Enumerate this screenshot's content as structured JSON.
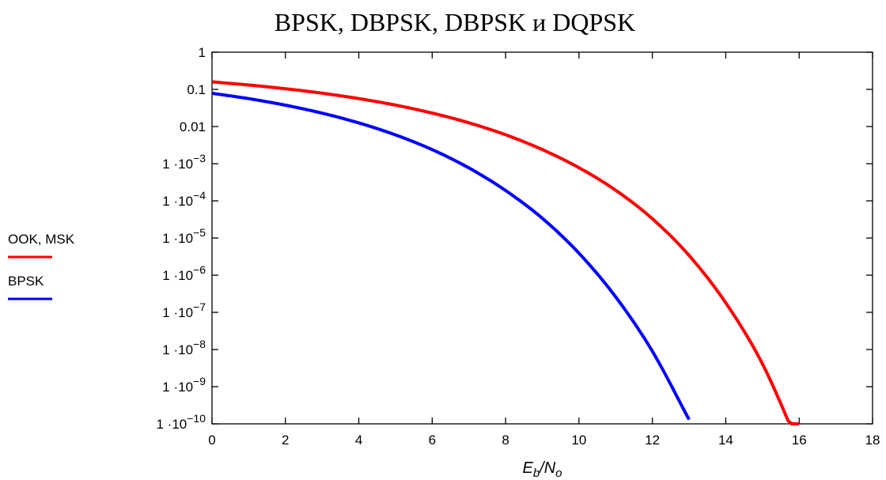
{
  "chart_data": {
    "type": "line",
    "title": "BPSK, DBPSK, DBPSK и DQPSK",
    "xlabel": {
      "main": "E",
      "sub1": "b",
      "mid": "/N",
      "sub2": "o"
    },
    "ylabel": "",
    "xlim": [
      0,
      18
    ],
    "ylim_exp": [
      -10,
      0
    ],
    "log_y": true,
    "grid": false,
    "x_ticks": [
      "0",
      "2",
      "4",
      "6",
      "8",
      "10",
      "12",
      "14",
      "16",
      "18"
    ],
    "y_ticks": [
      {
        "exp": 0,
        "mantissa": "1",
        "power": ""
      },
      {
        "exp": -1,
        "mantissa": "0.1",
        "power": ""
      },
      {
        "exp": -2,
        "mantissa": "0.01",
        "power": ""
      },
      {
        "exp": -3,
        "mantissa": "1 ·10",
        "power": "−3"
      },
      {
        "exp": -4,
        "mantissa": "1 ·10",
        "power": "−4"
      },
      {
        "exp": -5,
        "mantissa": "1 ·10",
        "power": "−5"
      },
      {
        "exp": -6,
        "mantissa": "1 ·10",
        "power": "−6"
      },
      {
        "exp": -7,
        "mantissa": "1 ·10",
        "power": "−7"
      },
      {
        "exp": -8,
        "mantissa": "1 ·10",
        "power": "−8"
      },
      {
        "exp": -9,
        "mantissa": "1 ·10",
        "power": "−9"
      },
      {
        "exp": -10,
        "mantissa": "1 ·10",
        "power": "−10"
      }
    ],
    "legend_position": "left",
    "series": [
      {
        "name": "OOK, MSK",
        "color": "#ff0000",
        "x": [
          0,
          1,
          2,
          3,
          4,
          5,
          6,
          7,
          8,
          9,
          10,
          11,
          12,
          13,
          14,
          15,
          16
        ],
        "y": [
          0.159,
          0.131,
          0.104,
          0.0789,
          0.0565,
          0.0377,
          0.023,
          0.0126,
          0.006,
          0.0024,
          0.00078,
          0.000193,
          3.3e-05,
          3.4e-06,
          1.8e-07,
          4.1e-09,
          2.5e-11
        ]
      },
      {
        "name": "BPSK",
        "color": "#0000ff",
        "x": [
          0,
          1,
          2,
          3,
          4,
          5,
          6,
          7,
          8,
          9,
          10,
          11,
          12,
          13
        ],
        "y": [
          0.0786,
          0.0563,
          0.0375,
          0.0229,
          0.0125,
          0.00595,
          0.00239,
          0.00077,
          0.00019,
          3.4e-05,
          3.9e-06,
          2.6e-07,
          9e-09,
          1.3e-10
        ]
      }
    ]
  }
}
